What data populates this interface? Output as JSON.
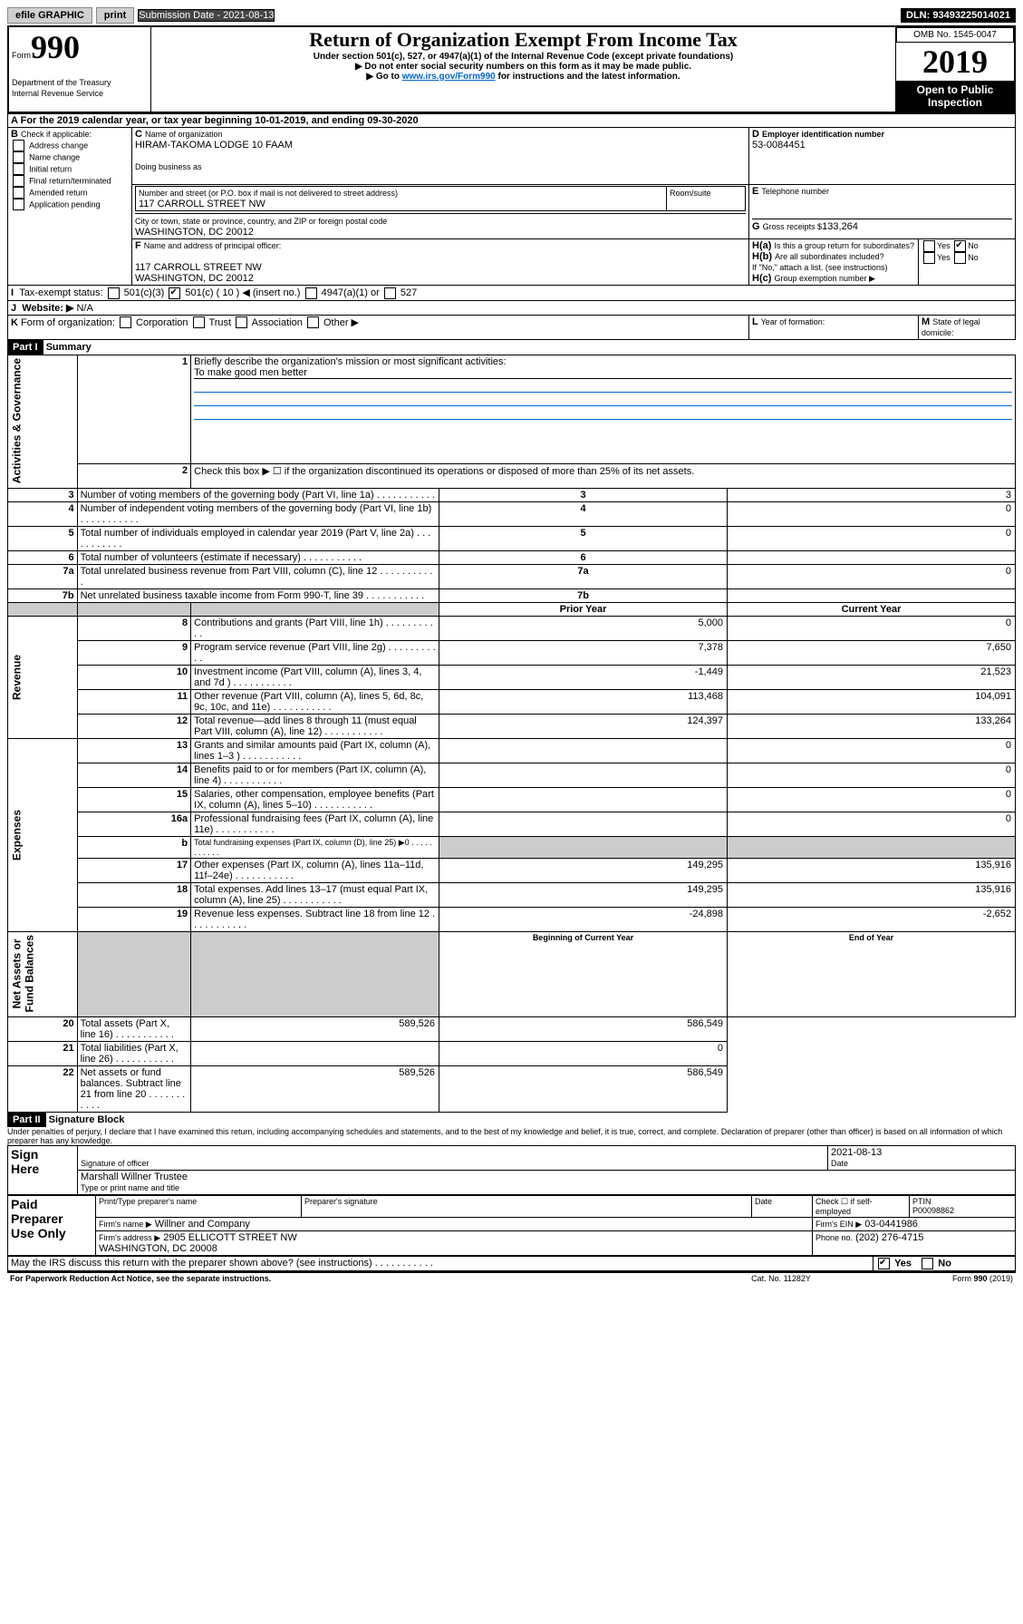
{
  "topbar": {
    "efile": "efile GRAPHIC",
    "print": "print",
    "subdate_label": "Submission Date - 2021-08-13",
    "dln": "DLN: 93493225014021"
  },
  "header": {
    "form_label": "Form",
    "form_num": "990",
    "title": "Return of Organization Exempt From Income Tax",
    "sub1": "Under section 501(c), 527, or 4947(a)(1) of the Internal Revenue Code (except private foundations)",
    "sub2": "▶ Do not enter social security numbers on this form as it may be made public.",
    "sub3": "▶ Go to ",
    "sub3_link": "www.irs.gov/Form990",
    "sub3_tail": " for instructions and the latest information.",
    "dept": "Department of the Treasury\nInternal Revenue Service",
    "omb": "OMB No. 1545-0047",
    "year": "2019",
    "open": "Open to Public\nInspection"
  },
  "A": {
    "text": "For the 2019 calendar year, or tax year beginning 10-01-2019",
    "tail": ", and ending 09-30-2020"
  },
  "B": {
    "label": "Check if applicable:",
    "items": [
      "Address change",
      "Name change",
      "Initial return",
      "Final return/terminated",
      "Amended return",
      "Application pending"
    ]
  },
  "C": {
    "name_label": "Name of organization",
    "name": "HIRAM-TAKOMA LODGE 10 FAAM",
    "dba_label": "Doing business as",
    "dba": "",
    "addr_label": "Number and street (or P.O. box if mail is not delivered to street address)",
    "room_label": "Room/suite",
    "addr": "117 CARROLL STREET NW",
    "city_label": "City or town, state or province, country, and ZIP or foreign postal code",
    "city": "WASHINGTON, DC  20012"
  },
  "D": {
    "label": "Employer identification number",
    "value": "53-0084451"
  },
  "E": {
    "label": "Telephone number",
    "value": ""
  },
  "G": {
    "label": "Gross receipts $",
    "value": "133,264"
  },
  "F": {
    "label": "Name and address of principal officer:",
    "value": "117 CARROLL STREET NW\nWASHINGTON, DC  20012"
  },
  "H": {
    "a": "Is this a group return for subordinates?",
    "a_no": true,
    "b": "Are all subordinates included?",
    "b_note": "If \"No,\" attach a list. (see instructions)",
    "c": "Group exemption number ▶"
  },
  "I": {
    "label": "Tax-exempt status:",
    "c3": "501(c)(3)",
    "c": "501(c) ( 10 ) ◀ (insert no.)",
    "c_checked": true,
    "a47": "4947(a)(1) or",
    "s527": "527"
  },
  "J": {
    "label": "Website: ▶",
    "value": "N/A"
  },
  "K": {
    "label": "Form of organization:",
    "opts": [
      "Corporation",
      "Trust",
      "Association",
      "Other ▶"
    ]
  },
  "L": {
    "label": "Year of formation:"
  },
  "M": {
    "label": "State of legal domicile:"
  },
  "part1": {
    "hdr": "Part I",
    "title": "Summary",
    "l1": "Briefly describe the organization's mission or most significant activities:",
    "l1v": "To make good men better",
    "l2": "Check this box ▶ ☐  if the organization discontinued its operations or disposed of more than 25% of its net assets.",
    "rows_top": [
      {
        "n": "3",
        "t": "Number of voting members of the governing body (Part VI, line 1a)",
        "v": "3"
      },
      {
        "n": "4",
        "t": "Number of independent voting members of the governing body (Part VI, line 1b)",
        "v": "0"
      },
      {
        "n": "5",
        "t": "Total number of individuals employed in calendar year 2019 (Part V, line 2a)",
        "v": "0"
      },
      {
        "n": "6",
        "t": "Total number of volunteers (estimate if necessary)",
        "v": ""
      },
      {
        "n": "7a",
        "t": "Total unrelated business revenue from Part VIII, column (C), line 12",
        "v": "0"
      },
      {
        "n": "7b",
        "t": "Net unrelated business taxable income from Form 990-T, line 39",
        "v": ""
      }
    ],
    "col_prior": "Prior Year",
    "col_current": "Current Year",
    "rev": [
      {
        "n": "8",
        "t": "Contributions and grants (Part VIII, line 1h)",
        "p": "5,000",
        "c": "0"
      },
      {
        "n": "9",
        "t": "Program service revenue (Part VIII, line 2g)",
        "p": "7,378",
        "c": "7,650"
      },
      {
        "n": "10",
        "t": "Investment income (Part VIII, column (A), lines 3, 4, and 7d )",
        "p": "-1,449",
        "c": "21,523"
      },
      {
        "n": "11",
        "t": "Other revenue (Part VIII, column (A), lines 5, 6d, 8c, 9c, 10c, and 11e)",
        "p": "113,468",
        "c": "104,091"
      },
      {
        "n": "12",
        "t": "Total revenue—add lines 8 through 11 (must equal Part VIII, column (A), line 12)",
        "p": "124,397",
        "c": "133,264"
      }
    ],
    "exp": [
      {
        "n": "13",
        "t": "Grants and similar amounts paid (Part IX, column (A), lines 1–3 )",
        "p": "",
        "c": "0"
      },
      {
        "n": "14",
        "t": "Benefits paid to or for members (Part IX, column (A), line 4)",
        "p": "",
        "c": "0"
      },
      {
        "n": "15",
        "t": "Salaries, other compensation, employee benefits (Part IX, column (A), lines 5–10)",
        "p": "",
        "c": "0"
      },
      {
        "n": "16a",
        "t": "Professional fundraising fees (Part IX, column (A), line 11e)",
        "p": "",
        "c": "0"
      },
      {
        "n": "b",
        "t": "Total fundraising expenses (Part IX, column (D), line 25) ▶0",
        "p": "",
        "c": "",
        "gray": true
      },
      {
        "n": "17",
        "t": "Other expenses (Part IX, column (A), lines 11a–11d, 11f–24e)",
        "p": "149,295",
        "c": "135,916"
      },
      {
        "n": "18",
        "t": "Total expenses. Add lines 13–17 (must equal Part IX, column (A), line 25)",
        "p": "149,295",
        "c": "135,916"
      },
      {
        "n": "19",
        "t": "Revenue less expenses. Subtract line 18 from line 12",
        "p": "-24,898",
        "c": "-2,652"
      }
    ],
    "col_beg": "Beginning of Current Year",
    "col_end": "End of Year",
    "net": [
      {
        "n": "20",
        "t": "Total assets (Part X, line 16)",
        "p": "589,526",
        "c": "586,549"
      },
      {
        "n": "21",
        "t": "Total liabilities (Part X, line 26)",
        "p": "",
        "c": "0"
      },
      {
        "n": "22",
        "t": "Net assets or fund balances. Subtract line 21 from line 20",
        "p": "589,526",
        "c": "586,549"
      }
    ],
    "vert_ag": "Activities & Governance",
    "vert_rev": "Revenue",
    "vert_exp": "Expenses",
    "vert_net": "Net Assets or\nFund Balances"
  },
  "part2": {
    "hdr": "Part II",
    "title": "Signature Block",
    "decl": "Under penalties of perjury, I declare that I have examined this return, including accompanying schedules and statements, and to the best of my knowledge and belief, it is true, correct, and complete. Declaration of preparer (other than officer) is based on all information of which preparer has any knowledge.",
    "sign_here": "Sign\nHere",
    "sig_officer": "Signature of officer",
    "date_label": "Date",
    "date": "2021-08-13",
    "name_title": "Marshall Willner  Trustee",
    "name_title_label": "Type or print name and title",
    "paid": "Paid\nPreparer\nUse Only",
    "prep_name_label": "Print/Type preparer's name",
    "prep_sig_label": "Preparer's signature",
    "prep_date_label": "Date",
    "self_emp": "Check ☐ if self-employed",
    "ptin_label": "PTIN",
    "ptin": "P00098862",
    "firm_name_label": "Firm's name   ▶",
    "firm_name": "Willner and Company",
    "firm_ein_label": "Firm's EIN ▶",
    "firm_ein": "03-0441986",
    "firm_addr_label": "Firm's address ▶",
    "firm_addr": "2905 ELLICOTT STREET NW\nWASHINGTON, DC  20008",
    "phone_label": "Phone no.",
    "phone": "(202) 276-4715",
    "discuss": "May the IRS discuss this return with the preparer shown above? (see instructions)",
    "yes": "Yes",
    "no": "No"
  },
  "footer": {
    "pra": "For Paperwork Reduction Act Notice, see the separate instructions.",
    "cat": "Cat. No. 11282Y",
    "form": "Form 990 (2019)"
  }
}
